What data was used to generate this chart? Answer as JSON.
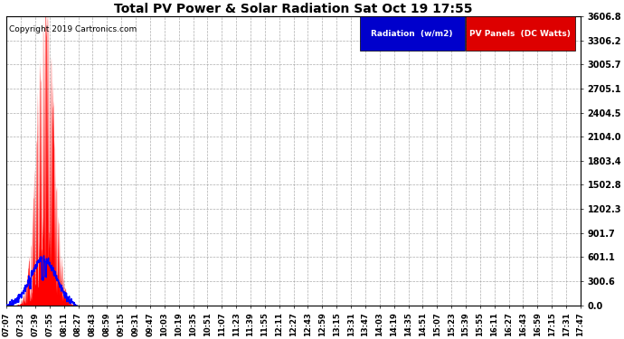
{
  "title": "Total PV Power & Solar Radiation Sat Oct 19 17:55",
  "copyright": "Copyright 2019 Cartronics.com",
  "legend_labels": [
    "Radiation  (w/m2)",
    "PV Panels  (DC Watts)"
  ],
  "yticks": [
    0.0,
    300.6,
    601.1,
    901.7,
    1202.3,
    1502.8,
    1803.4,
    2104.0,
    2404.5,
    2705.1,
    3005.7,
    3306.2,
    3606.8
  ],
  "ymax": 3606.8,
  "bg_color": "#ffffff",
  "grid_color": "#aaaaaa",
  "xtick_labels": [
    "07:07",
    "07:23",
    "07:39",
    "07:55",
    "08:11",
    "08:27",
    "08:43",
    "08:59",
    "09:15",
    "09:31",
    "09:47",
    "10:03",
    "10:19",
    "10:35",
    "10:51",
    "11:07",
    "11:23",
    "11:39",
    "11:55",
    "12:11",
    "12:27",
    "12:43",
    "12:59",
    "13:15",
    "13:31",
    "13:47",
    "14:03",
    "14:19",
    "14:35",
    "14:51",
    "15:07",
    "15:23",
    "15:39",
    "15:55",
    "16:11",
    "16:27",
    "16:43",
    "16:59",
    "17:15",
    "17:31",
    "17:47"
  ]
}
